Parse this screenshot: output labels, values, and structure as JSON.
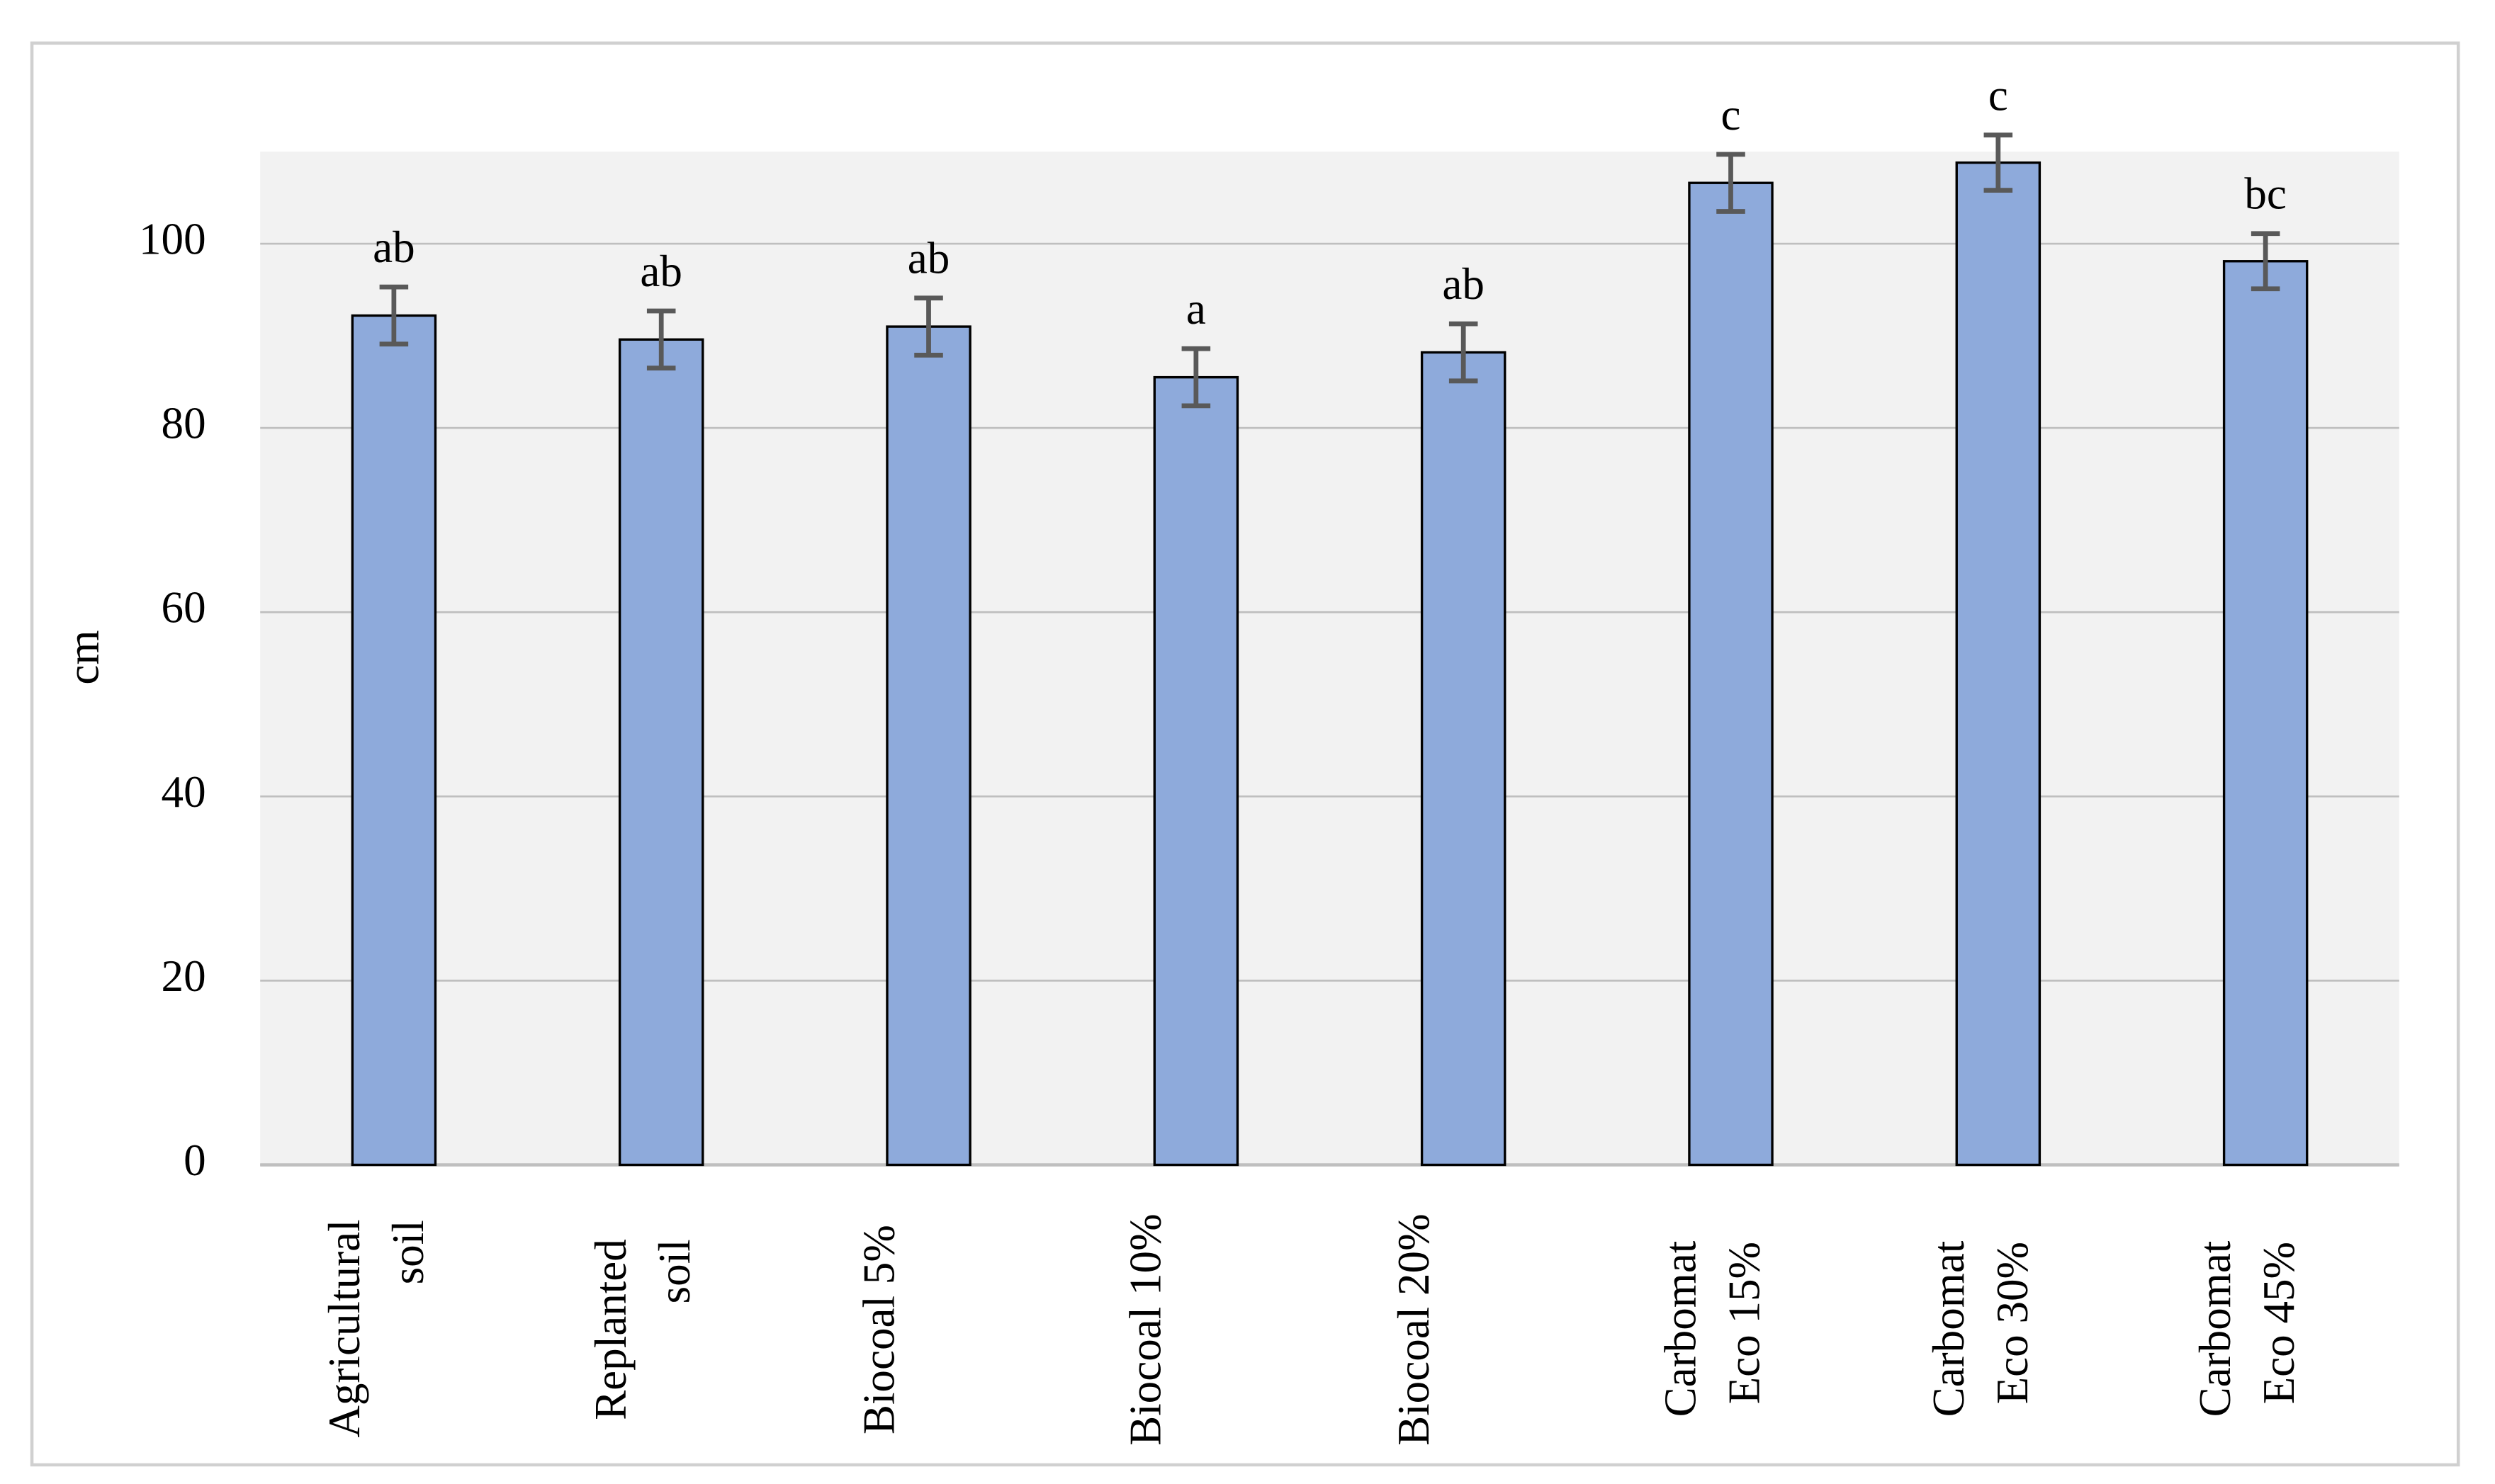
{
  "chart_data": {
    "type": "bar",
    "y_label": "cm",
    "categories": [
      "Agricultural\nsoil",
      "Replanted\nsoil",
      "Biocoal 5%",
      "Biocoal 10%",
      "Biocoal 20%",
      "Carbomat\nEco 15%",
      "Carbomat\nEco 30%",
      "Carbomat\nEco 45%"
    ],
    "values": [
      92.2,
      89.6,
      91.0,
      85.5,
      88.2,
      106.6,
      108.8,
      98.1
    ],
    "errors": [
      3.1,
      3.1,
      3.1,
      3.1,
      3.1,
      3.1,
      3.0,
      3.0
    ],
    "annotations": [
      "ab",
      "ab",
      "ab",
      "a",
      "ab",
      "c",
      "c",
      "bc"
    ],
    "color": "#8eaadb",
    "ylim": [
      0,
      110
    ],
    "yticks": [
      0,
      20,
      40,
      60,
      80,
      100
    ],
    "grid": true
  }
}
